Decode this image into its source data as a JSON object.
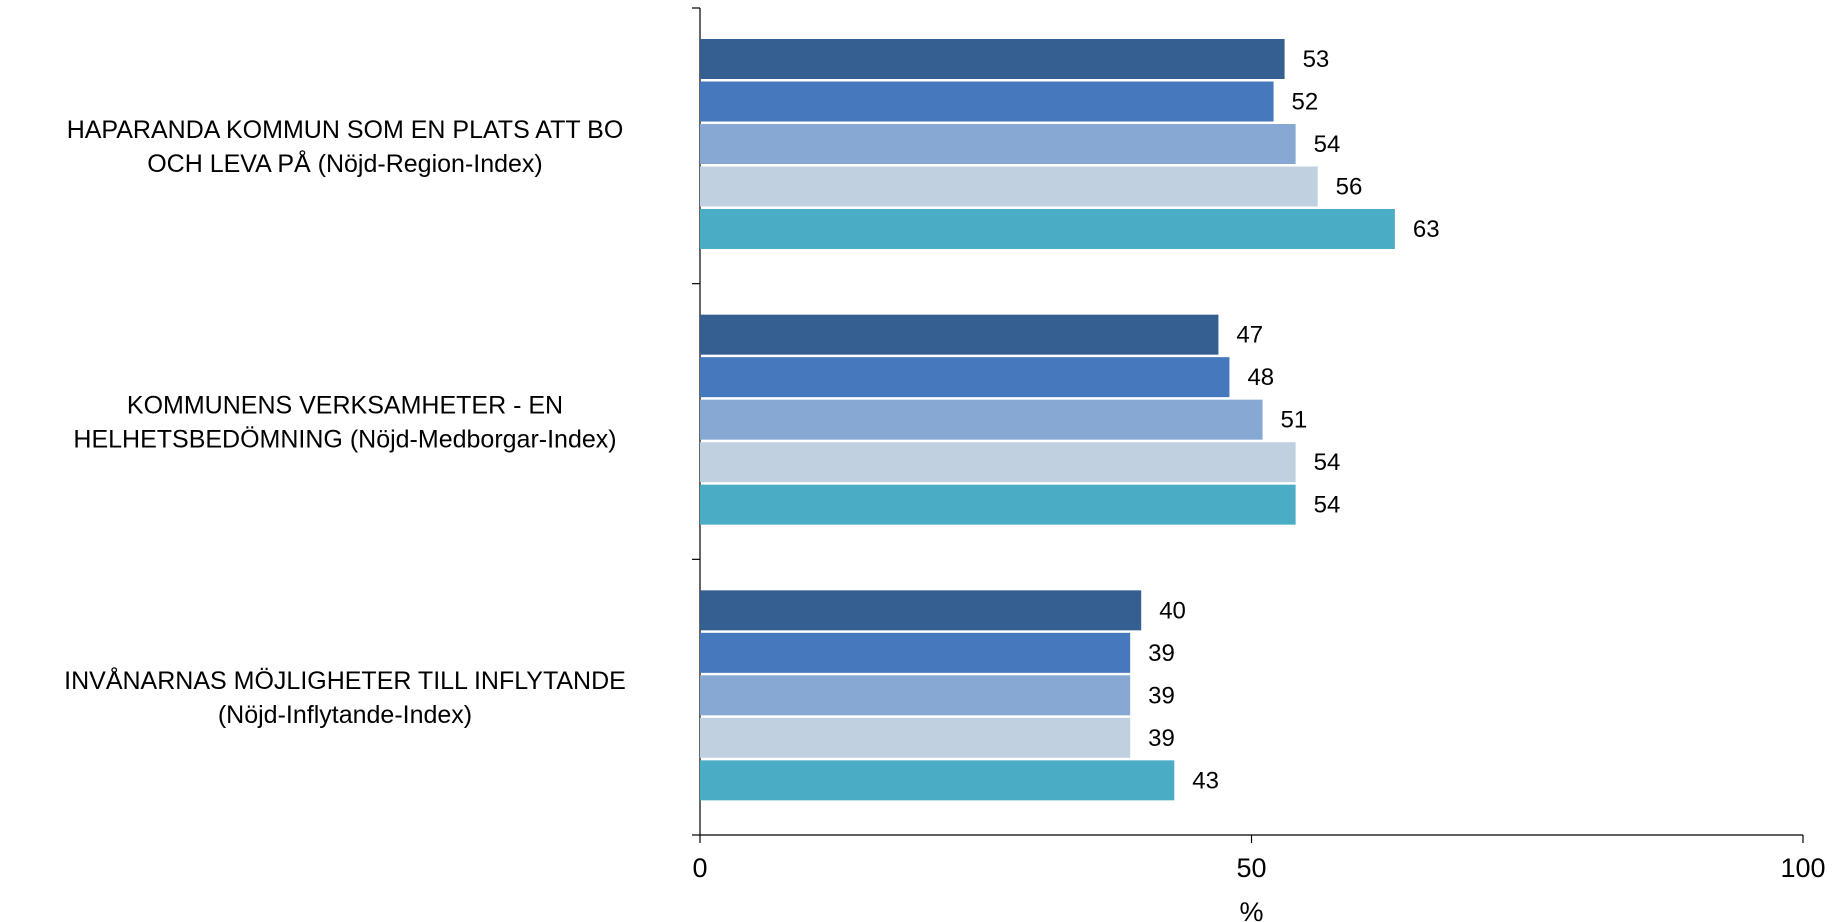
{
  "chart_data": {
    "type": "bar",
    "orientation": "horizontal",
    "categories": [
      [
        "HAPARANDA KOMMUN SOM EN PLATS ATT BO",
        "OCH LEVA PÅ (Nöjd-Region-Index)"
      ],
      [
        "KOMMUNENS VERKSAMHETER - EN",
        "HELHETSBEDÖMNING (Nöjd-Medborgar-Index)"
      ],
      [
        "INVÅNARNAS MÖJLIGHETER TILL INFLYTANDE",
        "(Nöjd-Inflytande-Index)"
      ]
    ],
    "series": [
      {
        "color": "#365F91",
        "values": [
          53,
          47,
          40
        ]
      },
      {
        "color": "#4678BE",
        "values": [
          52,
          48,
          39
        ]
      },
      {
        "color": "#86A8D2",
        "values": [
          54,
          51,
          39
        ]
      },
      {
        "color": "#C1D0E0",
        "values": [
          56,
          54,
          39
        ]
      },
      {
        "color": "#4BACC6",
        "values": [
          63,
          54,
          43
        ]
      }
    ],
    "xlim": [
      0,
      100
    ],
    "xticks": [
      "0",
      "50",
      "100"
    ],
    "xlabel": "%",
    "grid": false,
    "legend": "none"
  }
}
